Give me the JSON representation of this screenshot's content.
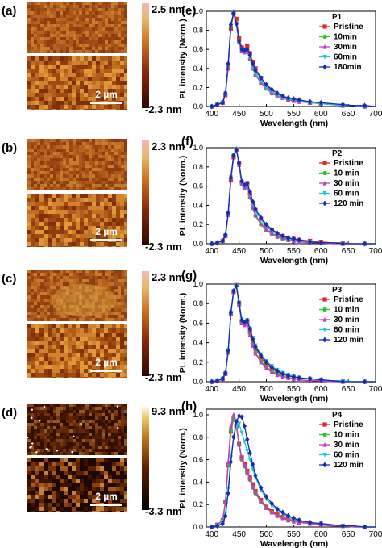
{
  "colors": {
    "pristine": "#e8242b",
    "10min": "#2cc42c",
    "30min": "#c43cc4",
    "60min": "#22c8d8",
    "120min": "#1a2ab0",
    "axis": "#000000"
  },
  "afm_panels": [
    {
      "label": "(a)",
      "max_label": "2.5 nm",
      "min_label": "-2.3 nm",
      "scale_label": "2 µm",
      "palette": "copper"
    },
    {
      "label": "(b)",
      "max_label": "2.3 nm",
      "min_label": "-2.3 nm",
      "scale_label": "2 µm",
      "palette": "copper"
    },
    {
      "label": "(c)",
      "max_label": "2.3 nm",
      "min_label": "-2.3 nm",
      "scale_label": "2 µm",
      "palette": "copper"
    },
    {
      "label": "(d)",
      "max_label": "9.3 nm",
      "min_label": "-3.3 nm",
      "scale_label": "2 µm",
      "palette": "hot"
    }
  ],
  "chart_data": [
    {
      "type": "line",
      "panel": "(e)",
      "legend_title": "P1",
      "xlabel": "Wavelength (nm)",
      "ylabel": "PL intensity (Norm.)",
      "xlim": [
        390,
        700
      ],
      "ylim": [
        0,
        1.0
      ],
      "xticks": [
        "400",
        "450",
        "500",
        "550",
        "600",
        "650",
        "700"
      ],
      "yticks": [
        "0.0",
        "0.2",
        "0.4",
        "0.6",
        "0.8",
        "1.0"
      ],
      "legend_position": "top-right",
      "x": [
        400,
        410,
        420,
        425,
        430,
        435,
        440,
        445,
        450,
        455,
        460,
        465,
        470,
        475,
        480,
        490,
        500,
        510,
        520,
        530,
        540,
        550,
        560,
        580,
        600,
        620,
        640,
        660,
        680,
        700
      ],
      "series": [
        {
          "name": "Pristine",
          "color_key": "pristine",
          "marker": "square",
          "values": [
            0.0,
            0.02,
            0.04,
            0.12,
            0.4,
            0.82,
            0.98,
            0.92,
            0.72,
            0.62,
            0.6,
            0.64,
            0.56,
            0.47,
            0.4,
            0.3,
            0.22,
            0.16,
            0.12,
            0.1,
            0.08,
            0.07,
            0.06,
            0.04,
            0.03,
            0.02,
            0.01,
            0.01,
            0.0,
            0.0
          ]
        },
        {
          "name": "10min",
          "color_key": "10min",
          "marker": "circle",
          "values": [
            0.0,
            0.02,
            0.04,
            0.13,
            0.42,
            0.84,
            0.99,
            0.88,
            0.68,
            0.58,
            0.57,
            0.58,
            0.5,
            0.4,
            0.33,
            0.25,
            0.19,
            0.14,
            0.11,
            0.09,
            0.07,
            0.06,
            0.05,
            0.04,
            0.03,
            0.02,
            0.01,
            0.01,
            0.0,
            0.0
          ]
        },
        {
          "name": "30min",
          "color_key": "30min",
          "marker": "triangle",
          "values": [
            0.0,
            0.02,
            0.04,
            0.13,
            0.42,
            0.85,
            1.0,
            0.88,
            0.68,
            0.58,
            0.57,
            0.58,
            0.5,
            0.4,
            0.33,
            0.25,
            0.19,
            0.14,
            0.11,
            0.09,
            0.07,
            0.06,
            0.05,
            0.04,
            0.03,
            0.02,
            0.01,
            0.01,
            0.0,
            0.0
          ]
        },
        {
          "name": "60min",
          "color_key": "60min",
          "marker": "triangle-down",
          "values": [
            0.0,
            0.02,
            0.04,
            0.14,
            0.44,
            0.86,
            0.99,
            0.87,
            0.68,
            0.59,
            0.58,
            0.59,
            0.52,
            0.42,
            0.35,
            0.27,
            0.2,
            0.15,
            0.12,
            0.09,
            0.08,
            0.07,
            0.06,
            0.04,
            0.03,
            0.02,
            0.01,
            0.01,
            0.0,
            0.0
          ]
        },
        {
          "name": "180min",
          "color_key": "120min",
          "marker": "diamond",
          "values": [
            0.0,
            0.02,
            0.04,
            0.14,
            0.45,
            0.86,
            0.98,
            0.87,
            0.69,
            0.6,
            0.59,
            0.6,
            0.54,
            0.45,
            0.38,
            0.3,
            0.23,
            0.18,
            0.14,
            0.11,
            0.09,
            0.08,
            0.07,
            0.05,
            0.04,
            0.03,
            0.02,
            0.01,
            0.01,
            0.0
          ]
        }
      ]
    },
    {
      "type": "line",
      "panel": "(f)",
      "legend_title": "P2",
      "xlabel": "Wavelength (nm)",
      "ylabel": "PL intensity (Norm.)",
      "xlim": [
        390,
        700
      ],
      "ylim": [
        0,
        1.0
      ],
      "xticks": [
        "400",
        "450",
        "500",
        "550",
        "600",
        "650",
        "700"
      ],
      "yticks": [
        "0.0",
        "0.2",
        "0.4",
        "0.6",
        "0.8",
        "1.0"
      ],
      "legend_position": "top-right",
      "x": [
        400,
        410,
        420,
        425,
        430,
        435,
        440,
        445,
        450,
        455,
        460,
        465,
        470,
        475,
        480,
        490,
        500,
        510,
        520,
        530,
        540,
        550,
        560,
        580,
        600,
        620,
        640,
        660,
        680,
        700
      ],
      "series": [
        {
          "name": "Pristine",
          "color_key": "pristine",
          "marker": "square",
          "values": [
            0.0,
            0.01,
            0.03,
            0.08,
            0.3,
            0.66,
            0.9,
            0.98,
            0.84,
            0.64,
            0.6,
            0.63,
            0.52,
            0.42,
            0.35,
            0.26,
            0.19,
            0.14,
            0.1,
            0.08,
            0.06,
            0.05,
            0.04,
            0.03,
            0.02,
            0.01,
            0.01,
            0.0,
            0.0,
            0.0
          ]
        },
        {
          "name": "10 min",
          "color_key": "10min",
          "marker": "circle",
          "values": [
            0.0,
            0.01,
            0.03,
            0.08,
            0.3,
            0.68,
            0.92,
            0.99,
            0.82,
            0.62,
            0.58,
            0.6,
            0.48,
            0.37,
            0.29,
            0.2,
            0.14,
            0.1,
            0.07,
            0.05,
            0.04,
            0.03,
            0.02,
            0.01,
            0.01,
            0.0,
            0.0,
            0.0,
            0.0,
            0.0
          ]
        },
        {
          "name": "30 min",
          "color_key": "30min",
          "marker": "triangle",
          "values": [
            0.0,
            0.01,
            0.03,
            0.08,
            0.3,
            0.68,
            0.92,
            0.99,
            0.82,
            0.62,
            0.58,
            0.6,
            0.49,
            0.38,
            0.3,
            0.21,
            0.15,
            0.11,
            0.08,
            0.06,
            0.04,
            0.03,
            0.02,
            0.01,
            0.01,
            0.0,
            0.0,
            0.0,
            0.0,
            0.0
          ]
        },
        {
          "name": "60 min",
          "color_key": "60min",
          "marker": "triangle-down",
          "values": [
            0.0,
            0.01,
            0.03,
            0.09,
            0.32,
            0.69,
            0.92,
            0.98,
            0.83,
            0.64,
            0.6,
            0.62,
            0.52,
            0.42,
            0.34,
            0.25,
            0.18,
            0.13,
            0.1,
            0.07,
            0.05,
            0.04,
            0.03,
            0.02,
            0.01,
            0.01,
            0.0,
            0.0,
            0.0,
            0.0
          ]
        },
        {
          "name": "120 min",
          "color_key": "120min",
          "marker": "diamond",
          "values": [
            0.0,
            0.01,
            0.03,
            0.09,
            0.32,
            0.69,
            0.92,
            0.98,
            0.84,
            0.65,
            0.61,
            0.63,
            0.54,
            0.44,
            0.36,
            0.27,
            0.2,
            0.15,
            0.11,
            0.08,
            0.06,
            0.05,
            0.04,
            0.02,
            0.01,
            0.01,
            0.0,
            0.0,
            0.0,
            0.0
          ]
        }
      ]
    },
    {
      "type": "line",
      "panel": "(g)",
      "legend_title": "P3",
      "xlabel": "Wavelength (nm)",
      "ylabel": "PL intensity (Norm.)",
      "xlim": [
        390,
        700
      ],
      "ylim": [
        0,
        1.0
      ],
      "xticks": [
        "400",
        "450",
        "500",
        "550",
        "600",
        "650",
        "700"
      ],
      "yticks": [
        "0.0",
        "0.2",
        "0.4",
        "0.6",
        "0.8",
        "1.0"
      ],
      "legend_position": "top-right",
      "x": [
        400,
        410,
        420,
        425,
        430,
        435,
        440,
        445,
        450,
        455,
        460,
        465,
        470,
        475,
        480,
        490,
        500,
        510,
        520,
        530,
        540,
        550,
        560,
        580,
        600,
        620,
        640,
        660,
        680,
        700
      ],
      "series": [
        {
          "name": "Pristine",
          "color_key": "pristine",
          "marker": "square",
          "values": [
            0.0,
            0.01,
            0.03,
            0.08,
            0.3,
            0.7,
            0.92,
            0.99,
            0.8,
            0.62,
            0.6,
            0.62,
            0.52,
            0.42,
            0.34,
            0.25,
            0.18,
            0.13,
            0.1,
            0.08,
            0.06,
            0.05,
            0.04,
            0.03,
            0.02,
            0.01,
            0.01,
            0.0,
            0.0,
            0.0
          ]
        },
        {
          "name": "10 min",
          "color_key": "10min",
          "marker": "circle",
          "values": [
            0.0,
            0.01,
            0.03,
            0.08,
            0.3,
            0.7,
            0.93,
            0.99,
            0.79,
            0.6,
            0.58,
            0.6,
            0.49,
            0.38,
            0.3,
            0.21,
            0.15,
            0.11,
            0.08,
            0.06,
            0.04,
            0.03,
            0.02,
            0.01,
            0.01,
            0.0,
            0.0,
            0.0,
            0.0,
            0.0
          ]
        },
        {
          "name": "30 min",
          "color_key": "30min",
          "marker": "triangle",
          "values": [
            0.0,
            0.01,
            0.03,
            0.08,
            0.3,
            0.7,
            0.93,
            0.99,
            0.79,
            0.6,
            0.58,
            0.6,
            0.48,
            0.37,
            0.29,
            0.2,
            0.14,
            0.1,
            0.07,
            0.05,
            0.04,
            0.03,
            0.02,
            0.01,
            0.01,
            0.0,
            0.0,
            0.0,
            0.0,
            0.0
          ]
        },
        {
          "name": "60 min",
          "color_key": "60min",
          "marker": "triangle-down",
          "values": [
            0.0,
            0.01,
            0.03,
            0.09,
            0.32,
            0.71,
            0.93,
            0.98,
            0.81,
            0.64,
            0.61,
            0.63,
            0.54,
            0.45,
            0.37,
            0.28,
            0.21,
            0.16,
            0.12,
            0.09,
            0.07,
            0.05,
            0.04,
            0.03,
            0.02,
            0.01,
            0.01,
            0.0,
            0.0,
            0.0
          ]
        },
        {
          "name": "120 min",
          "color_key": "120min",
          "marker": "diamond",
          "values": [
            0.0,
            0.01,
            0.03,
            0.09,
            0.32,
            0.71,
            0.93,
            0.98,
            0.81,
            0.63,
            0.61,
            0.63,
            0.54,
            0.44,
            0.36,
            0.27,
            0.2,
            0.15,
            0.11,
            0.08,
            0.06,
            0.05,
            0.04,
            0.03,
            0.02,
            0.01,
            0.0,
            0.0,
            0.0,
            0.0
          ]
        }
      ]
    },
    {
      "type": "line",
      "panel": "(h)",
      "legend_title": "P4",
      "xlabel": "Wavelength (nm)",
      "ylabel": "PL intensity (Norm.)",
      "xlim": [
        390,
        700
      ],
      "ylim": [
        0,
        1.05
      ],
      "xticks": [
        "400",
        "450",
        "500",
        "550",
        "600",
        "650",
        "700"
      ],
      "yticks": [
        "0.0",
        "0.2",
        "0.4",
        "0.6",
        "0.8",
        "1.0"
      ],
      "legend_position": "top-right",
      "x": [
        400,
        410,
        420,
        425,
        430,
        435,
        440,
        445,
        450,
        455,
        460,
        465,
        470,
        475,
        480,
        490,
        500,
        510,
        520,
        530,
        540,
        550,
        560,
        580,
        600,
        620,
        640,
        660,
        680,
        700
      ],
      "series": [
        {
          "name": "Pristine",
          "color_key": "pristine",
          "marker": "square",
          "values": [
            0.0,
            0.02,
            0.06,
            0.22,
            0.55,
            0.85,
            0.96,
            0.9,
            0.74,
            0.62,
            0.56,
            0.5,
            0.44,
            0.38,
            0.32,
            0.24,
            0.18,
            0.14,
            0.11,
            0.09,
            0.07,
            0.06,
            0.05,
            0.03,
            0.02,
            0.01,
            0.01,
            0.0,
            0.0,
            0.0
          ]
        },
        {
          "name": "10 min",
          "color_key": "10min",
          "marker": "circle",
          "values": [
            0.0,
            0.02,
            0.06,
            0.22,
            0.56,
            0.86,
            0.97,
            0.9,
            0.73,
            0.6,
            0.54,
            0.48,
            0.42,
            0.35,
            0.3,
            0.22,
            0.17,
            0.13,
            0.1,
            0.08,
            0.06,
            0.05,
            0.04,
            0.03,
            0.02,
            0.01,
            0.01,
            0.0,
            0.0,
            0.0
          ]
        },
        {
          "name": "30 min",
          "color_key": "30min",
          "marker": "triangle",
          "values": [
            0.0,
            0.02,
            0.06,
            0.23,
            0.58,
            0.9,
            1.0,
            0.92,
            0.74,
            0.61,
            0.55,
            0.49,
            0.43,
            0.36,
            0.31,
            0.23,
            0.17,
            0.13,
            0.1,
            0.08,
            0.06,
            0.05,
            0.04,
            0.03,
            0.02,
            0.01,
            0.01,
            0.0,
            0.0,
            0.0
          ]
        },
        {
          "name": "60 min",
          "color_key": "60min",
          "marker": "triangle-down",
          "values": [
            0.0,
            0.01,
            0.04,
            0.12,
            0.34,
            0.62,
            0.8,
            0.9,
            0.92,
            0.84,
            0.76,
            0.68,
            0.6,
            0.52,
            0.44,
            0.33,
            0.25,
            0.19,
            0.15,
            0.12,
            0.09,
            0.07,
            0.06,
            0.04,
            0.03,
            0.02,
            0.01,
            0.01,
            0.0,
            0.0
          ]
        },
        {
          "name": "120 min",
          "color_key": "120min",
          "marker": "diamond",
          "values": [
            0.0,
            0.01,
            0.03,
            0.1,
            0.3,
            0.58,
            0.8,
            0.94,
            0.99,
            0.98,
            0.9,
            0.78,
            0.66,
            0.56,
            0.46,
            0.35,
            0.27,
            0.21,
            0.16,
            0.13,
            0.1,
            0.08,
            0.06,
            0.04,
            0.03,
            0.02,
            0.01,
            0.01,
            0.0,
            0.0
          ]
        }
      ]
    }
  ]
}
